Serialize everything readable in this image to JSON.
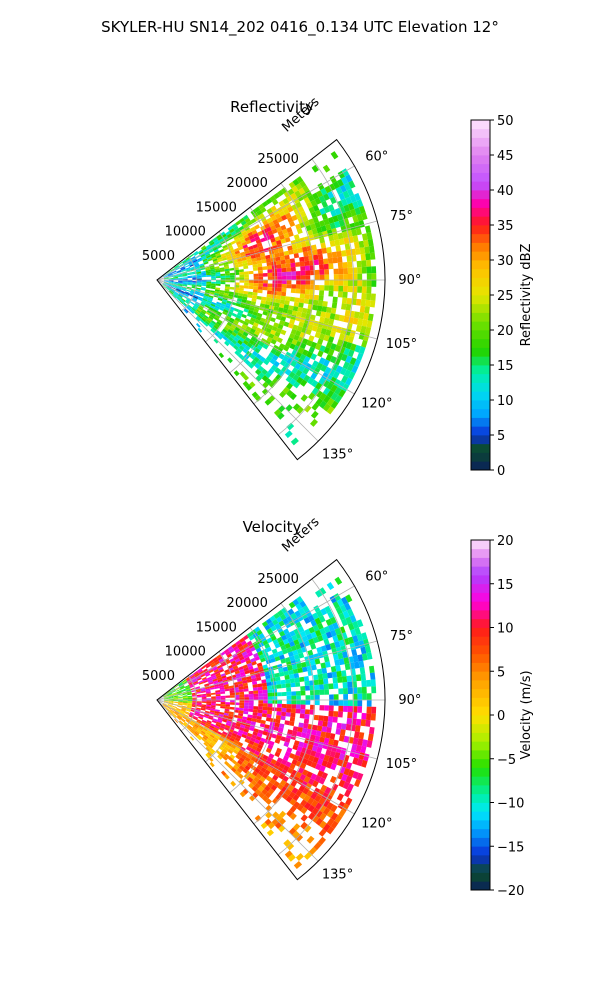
{
  "suptitle": "SKYLER-HU  SN14_202  0416_0.134 UTC Elevation 12°",
  "chart_data": [
    {
      "type": "heatmap",
      "projection": "polar-sector",
      "title": "Reflectivity",
      "range_label": "Meters",
      "range_ticks": [
        "5000",
        "10000",
        "15000",
        "20000",
        "25000"
      ],
      "range_tick_values": [
        5000,
        10000,
        15000,
        20000,
        25000
      ],
      "rmax": 29000,
      "azimuth_ticks": [
        "60°",
        "75°",
        "90°",
        "105°",
        "120°",
        "135°"
      ],
      "azimuth_tick_values": [
        60,
        75,
        90,
        105,
        120,
        135
      ],
      "azimuth_range": [
        52,
        142
      ],
      "grid": true,
      "colorbar": {
        "label": "Reflectivity dBZ",
        "min": 0,
        "max": 50,
        "ticks": [
          "0",
          "5",
          "10",
          "15",
          "20",
          "25",
          "30",
          "35",
          "40",
          "45",
          "50"
        ],
        "tick_values": [
          0,
          5,
          10,
          15,
          20,
          25,
          30,
          35,
          40,
          45,
          50
        ],
        "stops": [
          {
            "v": 0,
            "c": "#0a1f5c"
          },
          {
            "v": 3,
            "c": "#0b4d2a"
          },
          {
            "v": 5,
            "c": "#0a2fd8"
          },
          {
            "v": 8,
            "c": "#00a6ff"
          },
          {
            "v": 11,
            "c": "#00d9f0"
          },
          {
            "v": 14,
            "c": "#00f0a8"
          },
          {
            "v": 17,
            "c": "#22d400"
          },
          {
            "v": 21,
            "c": "#6ee000"
          },
          {
            "v": 25,
            "c": "#e6e600"
          },
          {
            "v": 29,
            "c": "#ffc000"
          },
          {
            "v": 32,
            "c": "#ff7a00"
          },
          {
            "v": 35,
            "c": "#ff1a1a"
          },
          {
            "v": 38,
            "c": "#ff00aa"
          },
          {
            "v": 41,
            "c": "#c050ff"
          },
          {
            "v": 45,
            "c": "#e080f0"
          },
          {
            "v": 50,
            "c": "#ffe6ff"
          }
        ]
      }
    },
    {
      "type": "heatmap",
      "projection": "polar-sector",
      "title": "Velocity",
      "range_label": "Meters",
      "range_ticks": [
        "5000",
        "10000",
        "15000",
        "20000",
        "25000"
      ],
      "range_tick_values": [
        5000,
        10000,
        15000,
        20000,
        25000
      ],
      "rmax": 29000,
      "azimuth_ticks": [
        "60°",
        "75°",
        "90°",
        "105°",
        "120°",
        "135°"
      ],
      "azimuth_tick_values": [
        60,
        75,
        90,
        105,
        120,
        135
      ],
      "azimuth_range": [
        52,
        142
      ],
      "grid": true,
      "colorbar": {
        "label": "Velocity (m/s)",
        "min": -20,
        "max": 20,
        "ticks": [
          "−20",
          "−15",
          "−10",
          "−5",
          "0",
          "5",
          "10",
          "15",
          "20"
        ],
        "tick_values": [
          -20,
          -15,
          -10,
          -5,
          0,
          5,
          10,
          15,
          20
        ],
        "stops": [
          {
            "v": -20,
            "c": "#0a1f5c"
          },
          {
            "v": -18,
            "c": "#0b4d2a"
          },
          {
            "v": -16,
            "c": "#0a2fd8"
          },
          {
            "v": -13,
            "c": "#00a6ff"
          },
          {
            "v": -11,
            "c": "#00e8f8"
          },
          {
            "v": -9,
            "c": "#00f0a0"
          },
          {
            "v": -6,
            "c": "#22e000"
          },
          {
            "v": -3,
            "c": "#a8f000"
          },
          {
            "v": 0,
            "c": "#ffe000"
          },
          {
            "v": 4,
            "c": "#ffa000"
          },
          {
            "v": 7,
            "c": "#ff5500"
          },
          {
            "v": 10,
            "c": "#ff1a1a"
          },
          {
            "v": 13,
            "c": "#ff00dd"
          },
          {
            "v": 16,
            "c": "#b040ff"
          },
          {
            "v": 18,
            "c": "#e080f0"
          },
          {
            "v": 20,
            "c": "#ffe6ff"
          }
        ]
      }
    }
  ]
}
